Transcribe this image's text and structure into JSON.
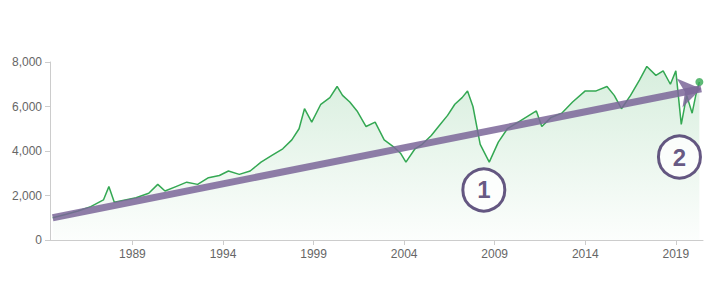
{
  "chart_data": {
    "type": "line",
    "color": "#34a853",
    "x": [
      1984.6,
      1985.3,
      1986.0,
      1986.7,
      1987.4,
      1987.7,
      1988.0,
      1988.6,
      1989.2,
      1989.9,
      1990.4,
      1990.8,
      1991.4,
      1992.0,
      1992.6,
      1993.2,
      1993.8,
      1994.3,
      1994.9,
      1995.5,
      1996.1,
      1996.7,
      1997.3,
      1997.8,
      1998.2,
      1998.5,
      1998.9,
      1999.4,
      1999.9,
      2000.3,
      2000.6,
      2001.0,
      2001.4,
      2001.9,
      2002.4,
      2002.9,
      2003.4,
      2003.8,
      2004.1,
      2004.6,
      2005.0,
      2005.5,
      2006.0,
      2006.4,
      2006.8,
      2007.2,
      2007.5,
      2007.8,
      2008.2,
      2008.7,
      2009.2,
      2009.7,
      2010.3,
      2010.9,
      2011.3,
      2011.6,
      2012.1,
      2012.7,
      2013.3,
      2014.0,
      2014.6,
      2015.2,
      2015.6,
      2016.0,
      2016.5,
      2017.0,
      2017.4,
      2017.9,
      2018.3,
      2018.7,
      2019.0,
      2019.3,
      2019.6,
      2019.9,
      2020.1,
      2020.3
    ],
    "values": [
      1000,
      1150,
      1300,
      1500,
      1800,
      2400,
      1700,
      1800,
      1900,
      2100,
      2500,
      2200,
      2400,
      2600,
      2500,
      2800,
      2900,
      3100,
      2950,
      3100,
      3500,
      3800,
      4100,
      4500,
      5000,
      5900,
      5300,
      6100,
      6400,
      6900,
      6500,
      6200,
      5800,
      5100,
      5300,
      4500,
      4200,
      3900,
      3500,
      4100,
      4300,
      4700,
      5200,
      5600,
      6100,
      6400,
      6700,
      6000,
      4300,
      3500,
      4400,
      5000,
      5300,
      5600,
      5800,
      5100,
      5500,
      5700,
      6200,
      6700,
      6700,
      6900,
      6500,
      5900,
      6500,
      7200,
      7800,
      7400,
      7600,
      7000,
      7600,
      5200,
      6500,
      5700,
      6500,
      7100
    ],
    "trend": {
      "x": [
        1984.6,
        2020.4
      ],
      "values": [
        1000,
        6800
      ],
      "color": "#7b6699"
    },
    "annotations": [
      {
        "text": "1",
        "x": 2008.4,
        "y": 2250
      },
      {
        "text": "2",
        "x": 2019.2,
        "y": 3730
      }
    ],
    "xlim": [
      1984.45,
      2020.5
    ],
    "xticks": [
      1989,
      1994,
      1999,
      2004,
      2009,
      2014,
      2019
    ],
    "ylim": [
      0,
      8000
    ],
    "yticks": [
      0,
      {
        "value": 2000,
        "label": "2,000"
      },
      {
        "value": 4000,
        "label": "4,000"
      },
      {
        "value": 6000,
        "label": "6,000"
      },
      {
        "value": 8000,
        "label": "8,000"
      }
    ],
    "grid": false
  }
}
